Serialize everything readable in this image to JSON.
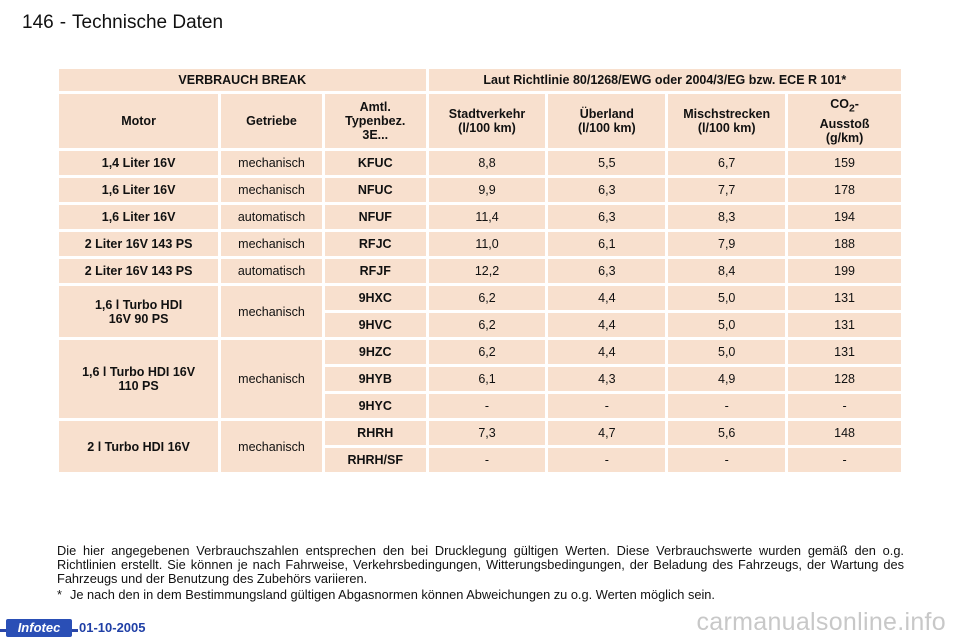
{
  "page": {
    "number": "146",
    "separator": "-",
    "title": "Technische Daten"
  },
  "table": {
    "group_left": "VERBRAUCH BREAK",
    "group_right": "Laut Richtlinie 80/1268/EWG oder 2004/3/EG bzw. ECE R 101*",
    "columns": {
      "motor": "Motor",
      "gear": "Getriebe",
      "type_l1": "Amtl.",
      "type_l2": "Typenbez.",
      "type_l3": "3E...",
      "city_l1": "Stadtverkehr",
      "city_l2": "(l/100 km)",
      "rural_l1": "Überland",
      "rural_l2": "(l/100 km)",
      "mixed_l1": "Mischstrecken",
      "mixed_l2": "(l/100 km)",
      "co2_l1": "CO",
      "co2_sub": "2",
      "co2_dash": "-",
      "co2_l2": "Ausstoß",
      "co2_l3": "(g/km)"
    },
    "rows": [
      {
        "motor": "1,4 Liter 16V",
        "gear": "mechanisch",
        "code": "KFUC",
        "city": "8,8",
        "rural": "5,5",
        "mixed": "6,7",
        "co2": "159"
      },
      {
        "motor": "1,6 Liter 16V",
        "gear": "mechanisch",
        "code": "NFUC",
        "city": "9,9",
        "rural": "6,3",
        "mixed": "7,7",
        "co2": "178"
      },
      {
        "motor": "1,6 Liter 16V",
        "gear": "automatisch",
        "code": "NFUF",
        "city": "11,4",
        "rural": "6,3",
        "mixed": "8,3",
        "co2": "194"
      },
      {
        "motor": "2 Liter 16V 143 PS",
        "gear": "mechanisch",
        "code": "RFJC",
        "city": "11,0",
        "rural": "6,1",
        "mixed": "7,9",
        "co2": "188"
      },
      {
        "motor": "2 Liter 16V 143 PS",
        "gear": "automatisch",
        "code": "RFJF",
        "city": "12,2",
        "rural": "6,3",
        "mixed": "8,4",
        "co2": "199"
      }
    ],
    "group_rows": [
      {
        "motor_l1": "1,6 l Turbo HDI",
        "motor_l2": "16V 90 PS",
        "gear": "mechanisch",
        "items": [
          {
            "code": "9HXC",
            "city": "6,2",
            "rural": "4,4",
            "mixed": "5,0",
            "co2": "131"
          },
          {
            "code": "9HVC",
            "city": "6,2",
            "rural": "4,4",
            "mixed": "5,0",
            "co2": "131"
          }
        ]
      },
      {
        "motor_l1": "1,6 l Turbo HDI 16V",
        "motor_l2": "110 PS",
        "gear": "mechanisch",
        "items": [
          {
            "code": "9HZC",
            "city": "6,2",
            "rural": "4,4",
            "mixed": "5,0",
            "co2": "131"
          },
          {
            "code": "9HYB",
            "city": "6,1",
            "rural": "4,3",
            "mixed": "4,9",
            "co2": "128"
          },
          {
            "code": "9HYC",
            "city": "-",
            "rural": "-",
            "mixed": "-",
            "co2": "-"
          }
        ]
      },
      {
        "motor_l1": "2 l Turbo HDI 16V",
        "motor_l2": "",
        "gear": "mechanisch",
        "items": [
          {
            "code": "RHRH",
            "city": "7,3",
            "rural": "4,7",
            "mixed": "5,6",
            "co2": "148"
          },
          {
            "code": "RHRH/SF",
            "city": "-",
            "rural": "-",
            "mixed": "-",
            "co2": "-"
          }
        ]
      }
    ]
  },
  "note": "Die hier angegebenen Verbrauchszahlen entsprechen den bei Drucklegung gültigen Werten. Diese Verbrauchswerte wurden gemäß den o.g. Richtlinien erstellt. Sie können je nach Fahrweise, Verkehrsbedingungen, Witterungsbedingungen, der Beladung des Fahrzeugs, der Wartung des Fahrzeugs und der Benutzung des Zubehörs variieren.",
  "footnote": {
    "mark": "*",
    "text": "Je nach den in dem Bestimmungsland gültigen Abgasnormen können Abweichungen zu o.g. Werten möglich sein."
  },
  "footer": {
    "logo": "Infotec",
    "date": "01-10-2005",
    "watermark": "carmanualsonline.info"
  },
  "colors": {
    "cell_bg": "#f8e0ce",
    "logo_bg": "#2a4fb6",
    "date": "#1f3fa6",
    "watermark": "#c8c8c8"
  }
}
